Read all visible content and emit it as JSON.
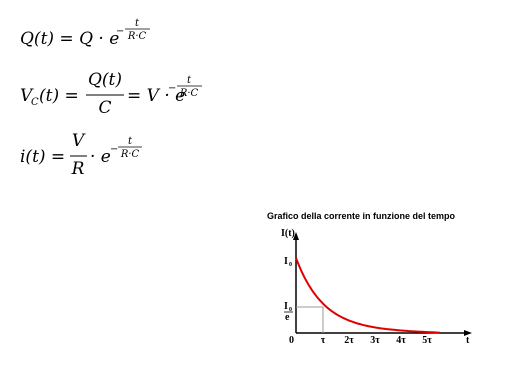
{
  "formulas": [
    {
      "left": "Q(t) = Q · e",
      "exp_sign": "−",
      "exp_num": "t",
      "exp_den": "R·C"
    },
    {
      "symbol": "V",
      "subscript": "C",
      "left": "(t) =",
      "frac_num": "Q(t)",
      "frac_den": "C",
      "right": "= V · e",
      "exp_sign": "−",
      "exp_num": "t",
      "exp_den": "R·C"
    },
    {
      "left": "i(t) =",
      "frac_num": "V",
      "frac_den": "R",
      "right": "· e",
      "exp_sign": "−",
      "exp_num": "t",
      "exp_den": "R·C"
    }
  ],
  "figure": {
    "title": "Grafico della corrente in funzione del tempo",
    "y_label": "I(t)",
    "x_label": "t",
    "i0": {
      "symbol": "I",
      "subscript": "0"
    },
    "i0_over_e": {
      "symbol": "I",
      "subscript": "0",
      "denominator": "e"
    },
    "origin": "0",
    "x_ticks": [
      "τ",
      "2τ",
      "3τ",
      "4τ",
      "5τ"
    ]
  }
}
